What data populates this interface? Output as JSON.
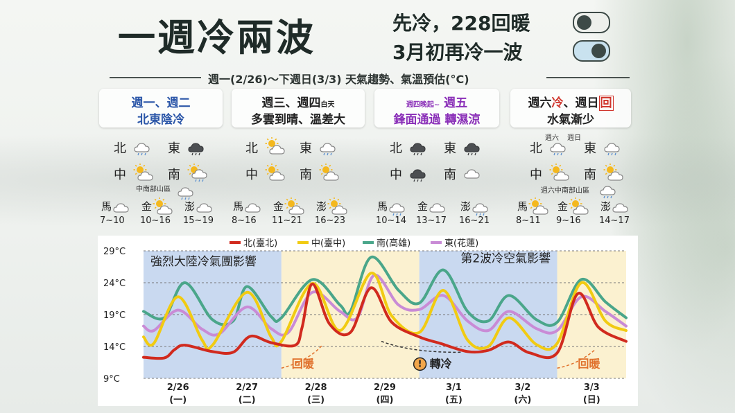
{
  "header": {
    "title": "一週冷兩波",
    "sub1": "先冷，228回暖",
    "sub2": "3月初再冷一波",
    "subtitle": "週一(2/26)～下週日(3/3) 天氣趨勢、氣溫預估(°C)"
  },
  "days": [
    {
      "l1": "週一、週二",
      "l1s": "",
      "l1pre": "",
      "l2": "北東陰冷"
    },
    {
      "l1": "週三、週四",
      "l1s": "白天",
      "l1pre": "",
      "l2": "多雲到晴、溫差大"
    },
    {
      "l1": "週五",
      "l1s": "",
      "l1pre": "週四晚起~",
      "l2": "鋒面通過 轉濕涼"
    },
    {
      "l1a": "週六",
      "l1b": "冷",
      "l1c": "、週日",
      "l1d": "回",
      "l2": "水氣漸少"
    }
  ],
  "regions": {
    "north": "北",
    "east": "東",
    "central": "中",
    "south": "南"
  },
  "notes": {
    "mountain1": "中南部山區",
    "sat": "週六",
    "sun": "週日",
    "mountain4": "週六中南部山區"
  },
  "islands": {
    "matsu": "馬",
    "kinmen": "金",
    "penghu": "澎"
  },
  "ranges": [
    [
      "7~10",
      "10~16",
      "15~19"
    ],
    [
      "8~16",
      "11~21",
      "16~23"
    ],
    [
      "10~14",
      "13~17",
      "16~21"
    ],
    [
      "8~11",
      "9~16",
      "14~17"
    ]
  ],
  "icons": [
    [
      "partly-cloudy-rain",
      "dark-rain-cloud",
      "partly-sunny",
      "partly-sunny-rain",
      "cloud",
      "partly-sunny",
      "cloud"
    ],
    [
      "partly-sunny",
      "cloud-rain",
      "partly-sunny",
      "partly-sunny",
      "cloud",
      "partly-sunny",
      "partly-sunny"
    ],
    [
      "dark-rain-cloud",
      "dark-rain-cloud",
      "dark-rain-cloud",
      "cloud",
      "cloud-rain",
      "cloud",
      "cloud-rain"
    ],
    [
      "cloud-rain",
      "cloud-rain",
      "partly-sunny",
      "partly-sunny",
      "partly-sunny",
      "partly-sunny",
      "cloud"
    ]
  ],
  "chart_data": {
    "type": "line",
    "x": [
      "2/26",
      "2/27",
      "2/28",
      "2/29",
      "3/1",
      "3/2",
      "3/3"
    ],
    "xlabels": [
      [
        "2/26",
        "(一)"
      ],
      [
        "2/27",
        "(二)"
      ],
      [
        "2/28",
        "(三)"
      ],
      [
        "2/29",
        "(四)"
      ],
      [
        "3/1",
        "(五)"
      ],
      [
        "3/2",
        "(六)"
      ],
      [
        "3/3",
        "(日)"
      ]
    ],
    "yticks": [
      "29°C",
      "24°C",
      "19°C",
      "14°C",
      "9°C"
    ],
    "ylim": [
      9,
      29
    ],
    "ytick_values": [
      29,
      24,
      19,
      14,
      9
    ],
    "xrange": [
      0,
      7
    ],
    "series": [
      {
        "name": "北(臺北)",
        "color": "#d12a1e",
        "values": [
          [
            0,
            12.3
          ],
          [
            0.3,
            12.2
          ],
          [
            0.45,
            13.5
          ],
          [
            0.6,
            14.2
          ],
          [
            1,
            13.2
          ],
          [
            1.3,
            13.1
          ],
          [
            1.55,
            15.6
          ],
          [
            1.85,
            14.6
          ],
          [
            2.2,
            14.2
          ],
          [
            2.3,
            17
          ],
          [
            2.45,
            23.8
          ],
          [
            2.7,
            17.5
          ],
          [
            3,
            16.2
          ],
          [
            3.3,
            23.2
          ],
          [
            3.6,
            17.8
          ],
          [
            4,
            15.5
          ],
          [
            4.3,
            14.5
          ],
          [
            4.7,
            13.2
          ],
          [
            5,
            13.4
          ],
          [
            5.3,
            14.7
          ],
          [
            5.6,
            13
          ],
          [
            6,
            13
          ],
          [
            6.3,
            22.3
          ],
          [
            6.6,
            17
          ],
          [
            7,
            14.8
          ]
        ]
      },
      {
        "name": "中(臺中)",
        "color": "#f1cb12",
        "values": [
          [
            0,
            15.5
          ],
          [
            0.15,
            14.5
          ],
          [
            0.5,
            21.8
          ],
          [
            0.85,
            15
          ],
          [
            1,
            14.2
          ],
          [
            1.5,
            22.5
          ],
          [
            1.85,
            15.5
          ],
          [
            2,
            14.8
          ],
          [
            2.45,
            23.9
          ],
          [
            2.85,
            16.5
          ],
          [
            3.3,
            25.5
          ],
          [
            3.6,
            18.8
          ],
          [
            4,
            16.2
          ],
          [
            4.35,
            22.8
          ],
          [
            4.7,
            15
          ],
          [
            5,
            14
          ],
          [
            5.3,
            18.5
          ],
          [
            5.7,
            14.3
          ],
          [
            6,
            14.5
          ],
          [
            6.35,
            24
          ],
          [
            6.7,
            18
          ],
          [
            7,
            16.5
          ]
        ]
      },
      {
        "name": "南(高雄)",
        "color": "#4aa68a",
        "values": [
          [
            0,
            19.5
          ],
          [
            0.3,
            18.5
          ],
          [
            0.6,
            24
          ],
          [
            1,
            18.2
          ],
          [
            1.3,
            18
          ],
          [
            1.5,
            23.4
          ],
          [
            1.85,
            18.7
          ],
          [
            2,
            18.5
          ],
          [
            2.45,
            24.5
          ],
          [
            2.85,
            20.5
          ],
          [
            3,
            19.5
          ],
          [
            3.3,
            28
          ],
          [
            3.7,
            22.8
          ],
          [
            4,
            20.8
          ],
          [
            4.35,
            26
          ],
          [
            4.7,
            19.5
          ],
          [
            5,
            18
          ],
          [
            5.3,
            22
          ],
          [
            5.7,
            18.2
          ],
          [
            6,
            17.8
          ],
          [
            6.35,
            24.5
          ],
          [
            6.7,
            21
          ],
          [
            7,
            18.5
          ]
        ]
      },
      {
        "name": "東(花蓮)",
        "color": "#c98bd6",
        "values": [
          [
            0,
            17.2
          ],
          [
            0.15,
            16.5
          ],
          [
            0.5,
            19.7
          ],
          [
            0.85,
            16.7
          ],
          [
            1.1,
            16
          ],
          [
            1.5,
            20.2
          ],
          [
            1.85,
            16.8
          ],
          [
            2.1,
            16.2
          ],
          [
            2.45,
            22.5
          ],
          [
            2.85,
            19.5
          ],
          [
            3.1,
            18.5
          ],
          [
            3.35,
            25.2
          ],
          [
            3.7,
            20.5
          ],
          [
            4,
            19.8
          ],
          [
            4.35,
            22
          ],
          [
            4.7,
            18
          ],
          [
            5,
            16.5
          ],
          [
            5.3,
            19.5
          ],
          [
            5.7,
            16.8
          ],
          [
            6,
            16.5
          ],
          [
            6.35,
            21.8
          ],
          [
            6.7,
            19.5
          ],
          [
            7,
            17.2
          ]
        ]
      }
    ],
    "bands": [
      {
        "from": 0,
        "to": 2,
        "color": "#c9d9f0"
      },
      {
        "from": 2,
        "to": 4,
        "color": "#fbf1d0"
      },
      {
        "from": 4,
        "to": 6,
        "color": "#c9d9f0"
      },
      {
        "from": 6,
        "to": 7,
        "color": "#fbf1d0"
      }
    ],
    "annotations": [
      {
        "text": "強烈大陸冷氣團影響",
        "x": 0.1,
        "y": 26.7
      },
      {
        "text": "第2波冷空氣影響",
        "x": 4.6,
        "y": 27.2
      },
      {
        "text": "回暖",
        "x": 2.15,
        "y": 10.7,
        "color": "#e0702a"
      },
      {
        "text": "轉冷",
        "x": 4.15,
        "y": 10.7,
        "color": "#222"
      },
      {
        "text": "回暖",
        "x": 6.3,
        "y": 10.7,
        "color": "#e0702a"
      }
    ],
    "legend_position": "top-center",
    "grid": true
  }
}
